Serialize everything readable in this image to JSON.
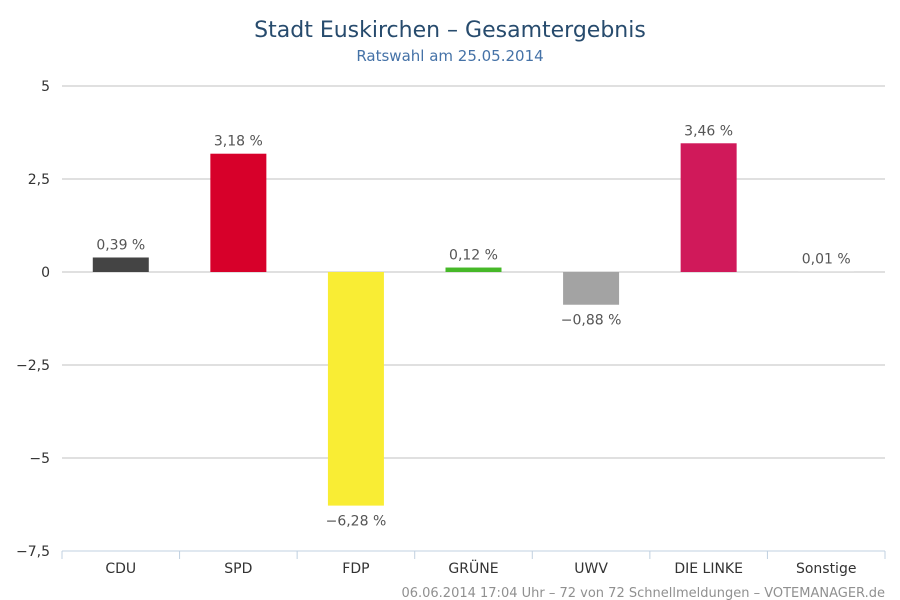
{
  "chart_data": {
    "type": "bar",
    "title": "Stadt Euskirchen – Gesamtergebnis",
    "subtitle": "Ratswahl am 25.05.2014",
    "categories": [
      "CDU",
      "SPD",
      "FDP",
      "GRÜNE",
      "UWV",
      "DIE LINKE",
      "Sonstige"
    ],
    "values": [
      0.39,
      3.18,
      -6.28,
      0.12,
      -0.88,
      3.46,
      0.01
    ],
    "value_labels": [
      "0,39 %",
      "3,18 %",
      "−6,28 %",
      "0,12 %",
      "−0,88 %",
      "3,46 %",
      "0,01 %"
    ],
    "colors": [
      "#444444",
      "#d7002a",
      "#f9ed34",
      "#46b828",
      "#a3a3a3",
      "#d0195a",
      "#cccccc"
    ],
    "y_ticks": [
      5,
      2.5,
      0,
      -2.5,
      -5,
      -7.5
    ],
    "y_tick_labels": [
      "5",
      "2,5",
      "0",
      "−2,5",
      "−5",
      "−7,5"
    ],
    "ylim": [
      -7.5,
      5
    ],
    "grid": true,
    "legend": "none"
  },
  "credits": "06.06.2014 17:04 Uhr – 72 von 72 Schnellmeldungen – VOTEMANAGER.de"
}
